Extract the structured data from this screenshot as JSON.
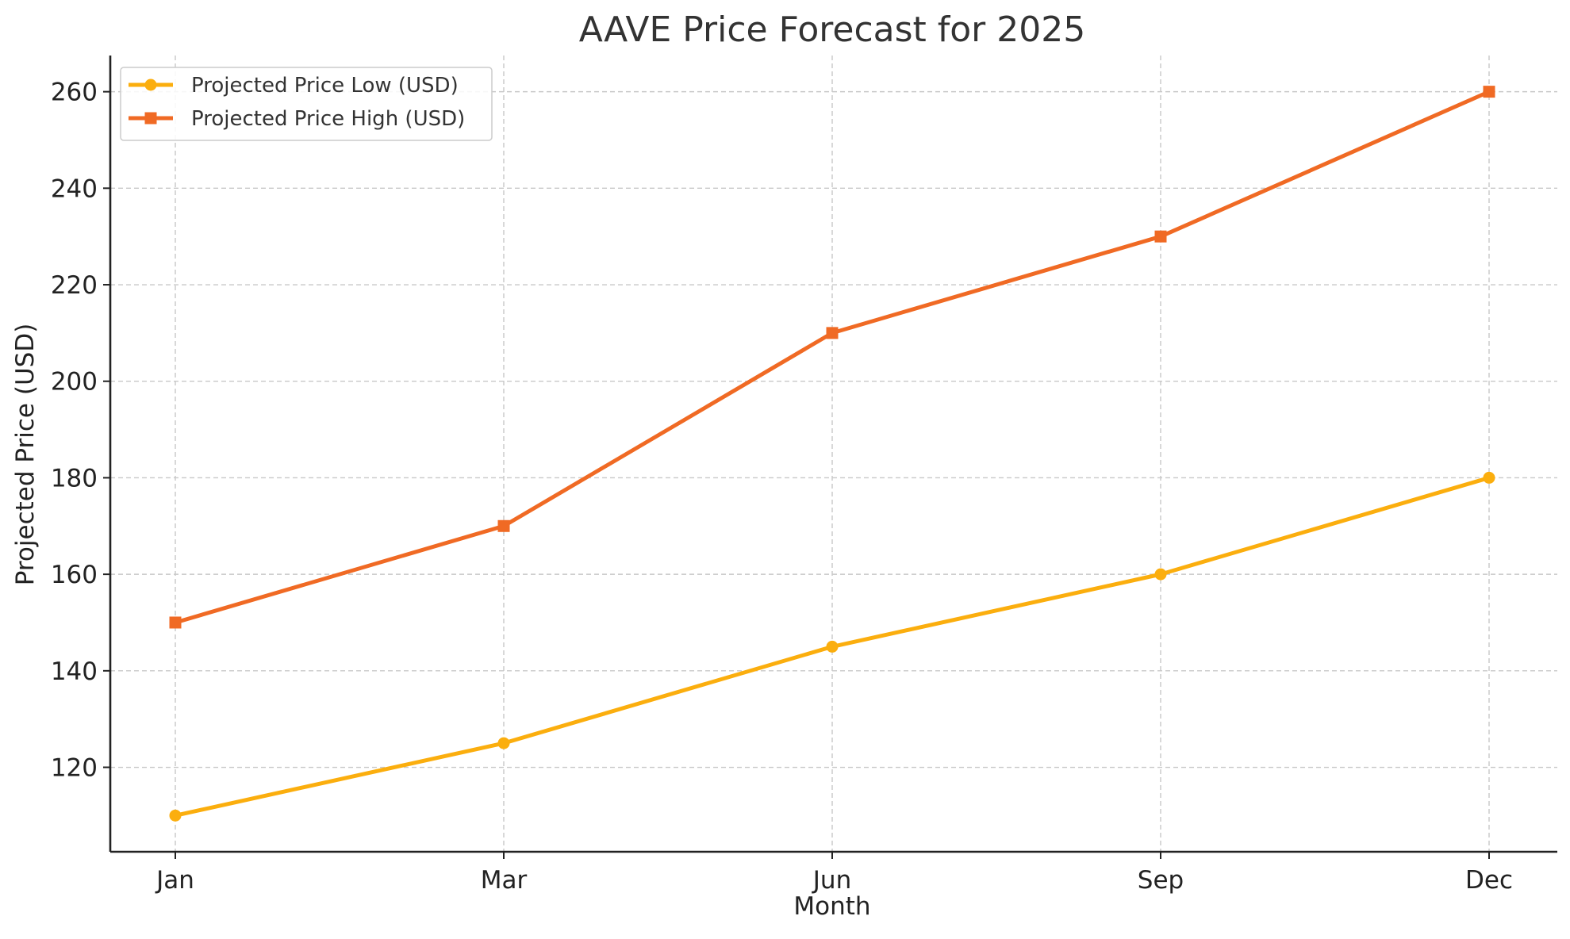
{
  "chart_data": {
    "type": "line",
    "title": "AAVE Price Forecast for 2025",
    "xlabel": "Month",
    "ylabel": "Projected Price (USD)",
    "categories": [
      "Jan",
      "Mar",
      "Jun",
      "Sep",
      "Dec"
    ],
    "yticks": [
      120,
      140,
      160,
      180,
      200,
      220,
      240,
      260
    ],
    "ylim": [
      102.5,
      267.5
    ],
    "grid": true,
    "legend_position": "top-left",
    "series": [
      {
        "name": "Projected Price Low (USD)",
        "color": "#FBAE0E",
        "marker": "circle",
        "values": [
          110,
          125,
          145,
          160,
          180
        ]
      },
      {
        "name": "Projected Price High (USD)",
        "color": "#F06A24",
        "marker": "square",
        "values": [
          150,
          170,
          210,
          230,
          260
        ]
      }
    ]
  }
}
